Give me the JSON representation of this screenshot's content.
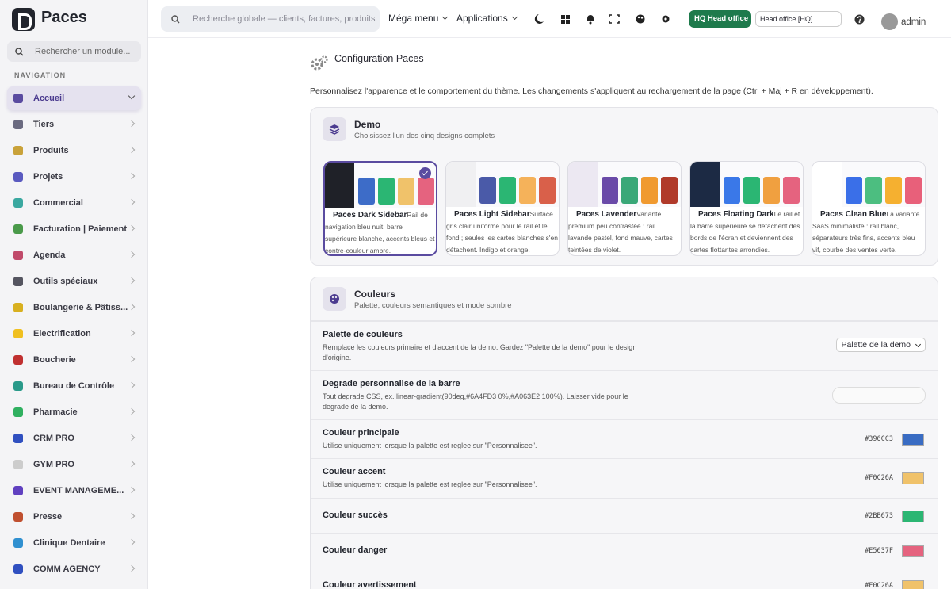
{
  "sidebar": {
    "brand": "Paces",
    "search_placeholder": "Rechercher un module...",
    "heading": "NAVIGATION",
    "active_index": 0,
    "items": [
      {
        "label": "Accueil",
        "icon_color": "#5a4ba0"
      },
      {
        "label": "Tiers",
        "icon_color": "#6a6a80"
      },
      {
        "label": "Produits",
        "icon_color": "#c9a23a"
      },
      {
        "label": "Projets",
        "icon_color": "#5a5ac0"
      },
      {
        "label": "Commercial",
        "icon_color": "#3aa8a0"
      },
      {
        "label": "Facturation | Paiement",
        "icon_color": "#4a9a4a"
      },
      {
        "label": "Agenda",
        "icon_color": "#c04a6a"
      },
      {
        "label": "Outils spéciaux",
        "icon_color": "#555560"
      },
      {
        "label": "Boulangerie & Pâtiss...",
        "icon_color": "#d8b020"
      },
      {
        "label": "Electrification",
        "icon_color": "#f0c020"
      },
      {
        "label": "Boucherie",
        "icon_color": "#c03030"
      },
      {
        "label": "Bureau de Contrôle",
        "icon_color": "#2a9a8a"
      },
      {
        "label": "Pharmacie",
        "icon_color": "#30b060"
      },
      {
        "label": "CRM PRO",
        "icon_color": "#3050c0"
      },
      {
        "label": "GYM PRO",
        "icon_color": "#cccccc"
      },
      {
        "label": "EVENT MANAGEME...",
        "icon_color": "#6040c0"
      },
      {
        "label": "Presse",
        "icon_color": "#c05030"
      },
      {
        "label": "Clinique Dentaire",
        "icon_color": "#3090d0"
      },
      {
        "label": "COMM AGENCY",
        "icon_color": "#3050c0"
      }
    ]
  },
  "topbar": {
    "search_placeholder": "Recherche globale — clients, factures, produits",
    "menus": [
      "Méga menu",
      "Applications"
    ],
    "badge_code": "HQ",
    "badge_label": "Head office",
    "site_select": "Head office [HQ]",
    "user": "admin"
  },
  "page": {
    "title": "Configuration Paces",
    "description": "Personnalisez l'apparence et le comportement du thème. Les changements s'appliquent au rechargement de la page (Ctrl + Maj + R en développement)."
  },
  "demo": {
    "title": "Demo",
    "subtitle": "Choisissez l'un des cinq designs complets",
    "selected_index": 0,
    "themes": [
      {
        "name": "Paces Dark Sidebar",
        "description": "Rail de navigation bleu nuit, barre supérieure blanche, accents bleus et contre-couleur ambre.",
        "sidebar_color": "#1f2128",
        "swatches": [
          "#3d6cc8",
          "#2bb673",
          "#f0c26a",
          "#e5637f"
        ]
      },
      {
        "name": "Paces Light Sidebar",
        "description": "Surface gris clair uniforme pour le rail et le fond ; seules les cartes blanches s'en détachent. Indigo et orange.",
        "sidebar_color": "#f0f0f2",
        "swatches": [
          "#4a5aa8",
          "#2bb673",
          "#f5b25a",
          "#d9604a"
        ]
      },
      {
        "name": "Paces Lavender",
        "description": "Variante premium peu contrastée : rail lavande pastel, fond mauve, cartes teintées de violet.",
        "sidebar_color": "#ece8f2",
        "swatches": [
          "#6a4aa8",
          "#3aa878",
          "#f09a30",
          "#b03a2a"
        ]
      },
      {
        "name": "Paces Floating Dark",
        "description": "Le rail et la barre supérieure se détachent des bords de l'écran et deviennent des cartes flottantes arrondies.",
        "sidebar_color": "#1c2a44",
        "swatches": [
          "#3a78e8",
          "#2bb673",
          "#f0a040",
          "#e5637f"
        ]
      },
      {
        "name": "Paces Clean Blue",
        "description": "La variante SaaS minimaliste : rail blanc, séparateurs très fins, accents bleu vif, courbe des ventes verte.",
        "sidebar_color": "#ffffff",
        "swatches": [
          "#3a6fe8",
          "#4cbe80",
          "#f5b030",
          "#e8607a"
        ]
      }
    ]
  },
  "colors": {
    "title": "Couleurs",
    "subtitle": "Palette, couleurs semantiques et mode sombre",
    "rows": [
      {
        "label": "Palette de couleurs",
        "help": "Remplace les couleurs primaire et d'accent de la demo. Gardez \"Palette de la demo\" pour le design d'origine.",
        "select": "Palette de la demo"
      },
      {
        "label": "Degrade personnalise de la barre",
        "help": "Tout degrade CSS, ex. linear-gradient(90deg,#6A4FD3 0%,#A063E2 100%). Laisser vide pour le degrade de la demo."
      },
      {
        "label": "Couleur principale",
        "help": "Utilise uniquement lorsque la palette est reglee sur \"Personnalisee\".",
        "hex": "#396CC3"
      },
      {
        "label": "Couleur accent",
        "help": "Utilise uniquement lorsque la palette est reglee sur \"Personnalisee\".",
        "hex": "#F0C26A"
      },
      {
        "label": "Couleur succès",
        "hex": "#2BB673"
      },
      {
        "label": "Couleur danger",
        "hex": "#E5637F"
      },
      {
        "label": "Couleur avertissement",
        "hex": "#F0C26A"
      }
    ]
  }
}
